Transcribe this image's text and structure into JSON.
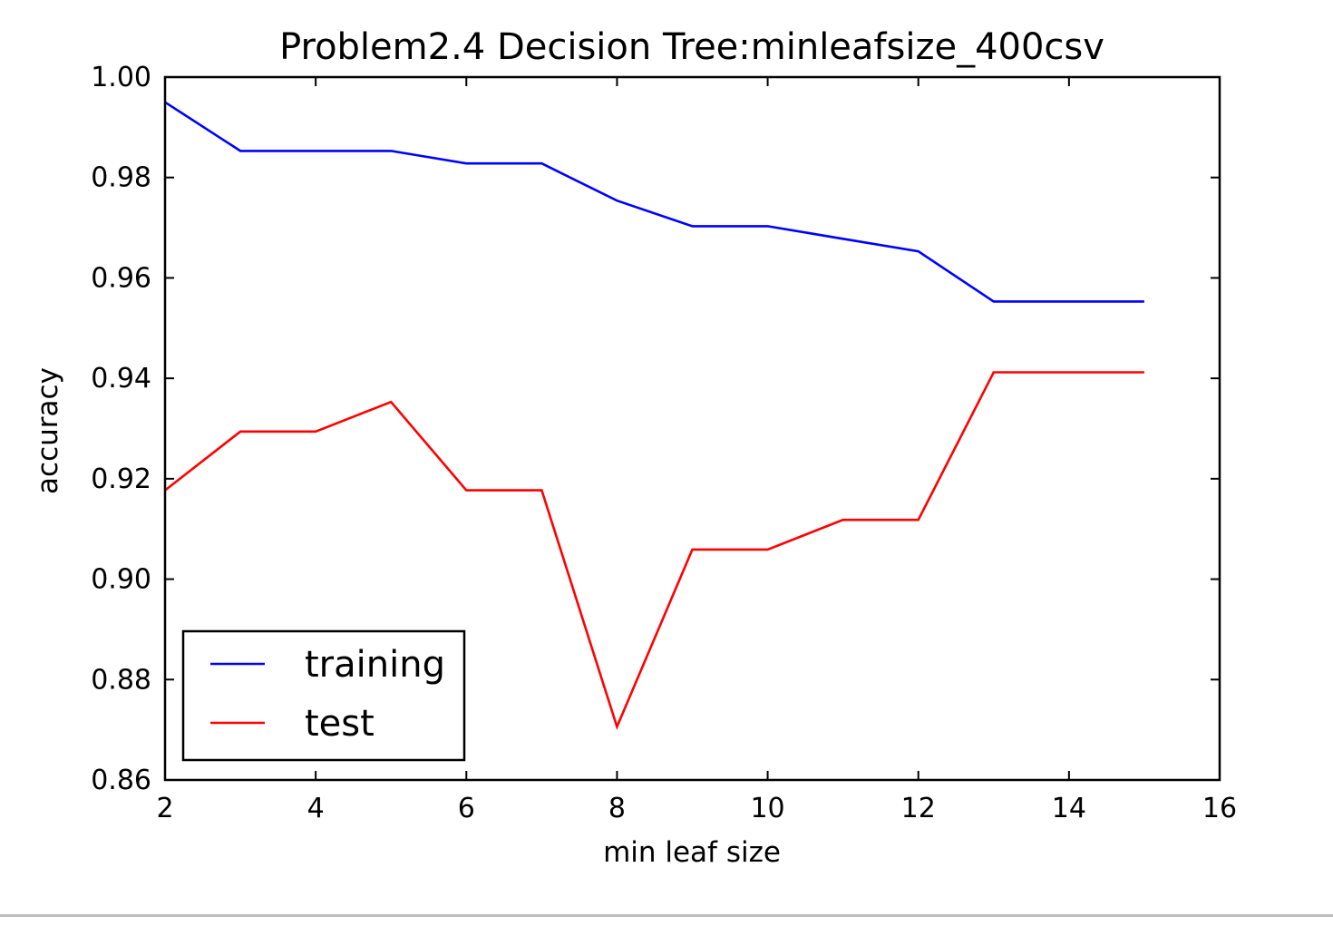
{
  "chart_data": {
    "type": "line",
    "title": "Problem2.4 Decision Tree:minleafsize_400csv",
    "xlabel": "min leaf size",
    "ylabel": "accuracy",
    "xlim": [
      2,
      16
    ],
    "ylim": [
      0.86,
      1.0
    ],
    "xticks": [
      2,
      4,
      6,
      8,
      10,
      12,
      14,
      16
    ],
    "xtick_labels": [
      "2",
      "4",
      "6",
      "8",
      "10",
      "12",
      "14",
      "16"
    ],
    "yticks": [
      0.86,
      0.88,
      0.9,
      0.92,
      0.94,
      0.96,
      0.98,
      1.0
    ],
    "ytick_labels": [
      "0.86",
      "0.88",
      "0.90",
      "0.92",
      "0.94",
      "0.96",
      "0.98",
      "1.00"
    ],
    "grid": false,
    "legend_position": "lower-left",
    "x": [
      2,
      3,
      4,
      5,
      6,
      7,
      8,
      9,
      10,
      11,
      12,
      13,
      14,
      15
    ],
    "series": [
      {
        "name": "training",
        "color": "#0000ff",
        "values": [
          0.995,
          0.9853,
          0.9853,
          0.9853,
          0.9828,
          0.9828,
          0.9754,
          0.9703,
          0.9703,
          0.9678,
          0.9653,
          0.9553,
          0.9553,
          0.9553
        ]
      },
      {
        "name": "test",
        "color": "#ff0000",
        "values": [
          0.9177,
          0.9294,
          0.9294,
          0.9353,
          0.9177,
          0.9177,
          0.8706,
          0.9059,
          0.9059,
          0.9118,
          0.9118,
          0.9412,
          0.9412,
          0.9412
        ]
      }
    ]
  }
}
